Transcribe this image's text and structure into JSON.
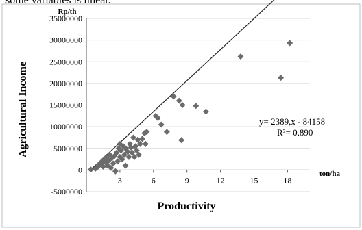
{
  "page": {
    "caption": "some variables is linear."
  },
  "chart_data": {
    "type": "scatter",
    "title": "",
    "xlabel": "Productivity",
    "ylabel": "Agricultural Income",
    "x_unit": "ton/ha",
    "y_unit": "Rp/th",
    "xlim": [
      0,
      20
    ],
    "ylim": [
      -5000000,
      35000000
    ],
    "x_ticks": [
      {
        "value": 3,
        "label": "3"
      },
      {
        "value": 6,
        "label": "6"
      },
      {
        "value": 9,
        "label": "9"
      },
      {
        "value": 12,
        "label": "12"
      },
      {
        "value": 15,
        "label": "15"
      },
      {
        "value": 18,
        "label": "18"
      }
    ],
    "y_ticks": [
      {
        "value": -5000000,
        "label": "-5000000"
      },
      {
        "value": 0,
        "label": "0"
      },
      {
        "value": 5000000,
        "label": "5000000"
      },
      {
        "value": 10000000,
        "label": "10000000"
      },
      {
        "value": 15000000,
        "label": "15000000"
      },
      {
        "value": 20000000,
        "label": "20000000"
      },
      {
        "value": 25000000,
        "label": "25000000"
      },
      {
        "value": 30000000,
        "label": "30000000"
      },
      {
        "value": 35000000,
        "label": "35000000"
      }
    ],
    "grid": "horizontal",
    "marker_color": "#6b6b6b",
    "line_color": "#222222",
    "trendline": {
      "slope": 2389,
      "intercept": -84158,
      "x_range": [
        0.5,
        18.2
      ]
    },
    "equation_label": "y= 2389,x - 84158",
    "r2_label": "R²= 0,890",
    "points": [
      {
        "x": 0.4,
        "y": 100000
      },
      {
        "x": 0.8,
        "y": 300000
      },
      {
        "x": 1.0,
        "y": 700000
      },
      {
        "x": 1.1,
        "y": 1200000
      },
      {
        "x": 1.3,
        "y": 1500000
      },
      {
        "x": 1.4,
        "y": 2000000
      },
      {
        "x": 1.5,
        "y": 800000
      },
      {
        "x": 1.6,
        "y": 2500000
      },
      {
        "x": 1.7,
        "y": 1800000
      },
      {
        "x": 1.8,
        "y": 3000000
      },
      {
        "x": 1.9,
        "y": 1000000
      },
      {
        "x": 2.0,
        "y": 2200000
      },
      {
        "x": 2.1,
        "y": 3500000
      },
      {
        "x": 2.2,
        "y": 500000
      },
      {
        "x": 2.3,
        "y": 2800000
      },
      {
        "x": 2.4,
        "y": 1500000
      },
      {
        "x": 2.5,
        "y": 3200000
      },
      {
        "x": 2.6,
        "y": -300000
      },
      {
        "x": 2.7,
        "y": 4000000
      },
      {
        "x": 2.8,
        "y": 2000000
      },
      {
        "x": 2.9,
        "y": 5000000
      },
      {
        "x": 3.0,
        "y": 3000000
      },
      {
        "x": 3.0,
        "y": 6000000
      },
      {
        "x": 3.1,
        "y": 4500000
      },
      {
        "x": 3.2,
        "y": 2500000
      },
      {
        "x": 3.3,
        "y": 5500000
      },
      {
        "x": 3.4,
        "y": 3500000
      },
      {
        "x": 3.5,
        "y": 1000000
      },
      {
        "x": 3.5,
        "y": 5000000
      },
      {
        "x": 3.7,
        "y": 4200000
      },
      {
        "x": 3.8,
        "y": 3000000
      },
      {
        "x": 3.9,
        "y": 6000000
      },
      {
        "x": 4.0,
        "y": 5200000
      },
      {
        "x": 4.1,
        "y": 4000000
      },
      {
        "x": 4.2,
        "y": 7500000
      },
      {
        "x": 4.3,
        "y": 3000000
      },
      {
        "x": 4.4,
        "y": 5500000
      },
      {
        "x": 4.5,
        "y": 4500000
      },
      {
        "x": 4.6,
        "y": 7000000
      },
      {
        "x": 4.7,
        "y": 3500000
      },
      {
        "x": 4.8,
        "y": 6000000
      },
      {
        "x": 5.0,
        "y": 7200000
      },
      {
        "x": 5.2,
        "y": 8500000
      },
      {
        "x": 5.3,
        "y": 6000000
      },
      {
        "x": 5.4,
        "y": 8800000
      },
      {
        "x": 6.2,
        "y": 12500000
      },
      {
        "x": 6.4,
        "y": 12000000
      },
      {
        "x": 6.7,
        "y": 10500000
      },
      {
        "x": 7.2,
        "y": 8800000
      },
      {
        "x": 7.8,
        "y": 17000000
      },
      {
        "x": 8.3,
        "y": 16000000
      },
      {
        "x": 8.5,
        "y": 6900000
      },
      {
        "x": 8.6,
        "y": 15000000
      },
      {
        "x": 9.8,
        "y": 14800000
      },
      {
        "x": 10.7,
        "y": 13500000
      },
      {
        "x": 13.8,
        "y": 26200000
      },
      {
        "x": 17.4,
        "y": 21300000
      },
      {
        "x": 18.2,
        "y": 29300000
      }
    ]
  }
}
